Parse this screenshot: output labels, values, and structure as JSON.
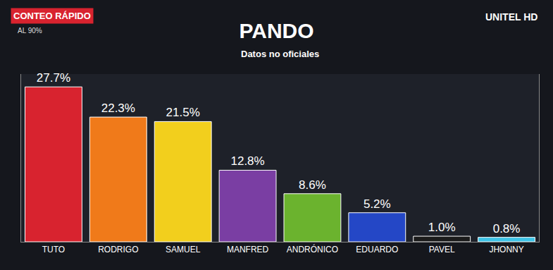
{
  "chart_data": {
    "type": "bar",
    "title": "PANDO",
    "subtitle": "Datos no oficiales",
    "categories": [
      "TUTO",
      "RODRIGO",
      "SAMUEL",
      "MANFRED",
      "ANDRÓNICO",
      "EDUARDO",
      "PAVEL",
      "JHONNY"
    ],
    "values": [
      27.7,
      22.3,
      21.5,
      12.8,
      8.6,
      5.2,
      1.0,
      0.8
    ],
    "value_labels": [
      "27.7%",
      "22.3%",
      "21.5%",
      "12.8%",
      "8.6%",
      "5.2%",
      "1.0%",
      "0.8%"
    ],
    "colors": [
      "#d8232f",
      "#f07a1a",
      "#f2cf1d",
      "#7a3ea3",
      "#6bb32e",
      "#2447c6",
      "#1b1b1b",
      "#3ec3e6"
    ],
    "ylim": [
      0,
      30
    ],
    "yticks": [],
    "grid": false,
    "data_labels": true,
    "tick_labels": "x",
    "annotations": [
      "CONTEO RÁPIDO",
      "AL 90%",
      "UNITEL HD"
    ]
  }
}
